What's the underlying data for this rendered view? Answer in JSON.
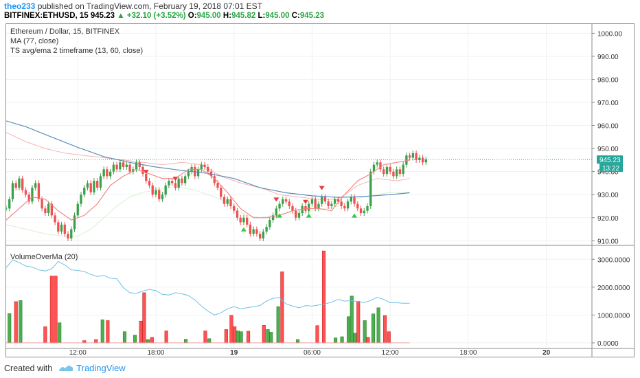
{
  "header": {
    "user": "theo233",
    "published_text": "published on TradingView.com, February 19, 2018 07:01 EST",
    "symbol": "BITFINEX:ETHUSD, 15",
    "last": "945.23",
    "change_arrow": "▲",
    "change": "+32.10 (+3.52%)",
    "o_label": "O:",
    "o_value": "945.00",
    "h_label": "H:",
    "h_value": "945.82",
    "l_label": "L:",
    "l_value": "945.00",
    "c_label": "C:",
    "c_value": "945.23"
  },
  "legend": {
    "line1": "Ethereum / Dollar, 15, BITFINEX",
    "line2": "MA (77, close)",
    "line3": "TS avg/ema 2 timeframe (13, 60, close)",
    "volume_title": "VolumeOverMa (20)"
  },
  "badges": {
    "price": "945.23",
    "countdown": "13:22"
  },
  "footer": {
    "created_with": "Created with",
    "brand": "TradingView"
  },
  "colors": {
    "up": "#3aa148",
    "down": "#f05050",
    "ma": "#5b8db8",
    "ema": "#f08080",
    "vol_ma": "#70c0e0",
    "price_line": "#26a69a"
  },
  "chart_data": [
    {
      "type": "candlestick",
      "title": "Ethereum / Dollar, 15, BITFINEX",
      "ylim": [
        908,
        1004
      ],
      "yticks": [
        "1000.00",
        "990.00",
        "980.00",
        "970.00",
        "960.00",
        "950.00",
        "940.00",
        "930.00",
        "920.00",
        "910.00"
      ],
      "ytick_values": [
        1000,
        990,
        980,
        970,
        960,
        950,
        940,
        930,
        920,
        910
      ],
      "xticks": [
        "12:00",
        "18:00",
        "19",
        "06:00",
        "12:00",
        "18:00",
        "20"
      ],
      "xtick_hours": [
        12,
        18,
        24,
        30,
        36,
        42,
        48
      ],
      "x_start_hour": 6.5,
      "x_end_hour": 51.5,
      "bar_interval_minutes": 15,
      "close": [
        924,
        928,
        935,
        933,
        937,
        932,
        930,
        927,
        933,
        935,
        928,
        924,
        922,
        926,
        921,
        918,
        914,
        917,
        913,
        911,
        915,
        921,
        926,
        930,
        933,
        935,
        931,
        936,
        933,
        938,
        941,
        938,
        940,
        943,
        941,
        944,
        942,
        943,
        940,
        941,
        944,
        942,
        939,
        936,
        934,
        930,
        932,
        928,
        930,
        934,
        936,
        935,
        933,
        937,
        935,
        938,
        940,
        942,
        938,
        941,
        943,
        942,
        940,
        938,
        935,
        933,
        929,
        926,
        928,
        925,
        923,
        920,
        918,
        920,
        917,
        913,
        915,
        913,
        911,
        914,
        916,
        919,
        921,
        924,
        926,
        928,
        927,
        925,
        923,
        920,
        922,
        925,
        923,
        926,
        928,
        924,
        926,
        929,
        927,
        925,
        926,
        928,
        927,
        925,
        924,
        927,
        929,
        926,
        924,
        922,
        923,
        925,
        940,
        943,
        944,
        941,
        939,
        942,
        940,
        938,
        941,
        939,
        943,
        947,
        946,
        948,
        945,
        946,
        944,
        945.23
      ],
      "ma_77_points": [
        [
          6.5,
          962
        ],
        [
          8,
          959.5
        ],
        [
          10,
          955
        ],
        [
          12,
          950.5
        ],
        [
          14,
          946.5
        ],
        [
          16,
          944
        ],
        [
          18,
          942
        ],
        [
          20,
          940.5
        ],
        [
          22,
          939.2
        ],
        [
          24,
          937
        ],
        [
          26,
          933
        ],
        [
          28,
          930.8
        ],
        [
          30,
          929.5
        ],
        [
          32,
          928.8
        ],
        [
          34,
          929.2
        ],
        [
          36,
          930
        ],
        [
          37.5,
          930.8
        ]
      ],
      "ema_points": [
        [
          6.5,
          919
        ],
        [
          7.5,
          924
        ],
        [
          8.5,
          929
        ],
        [
          9.5,
          928
        ],
        [
          10.5,
          923
        ],
        [
          11.5,
          919
        ],
        [
          12.5,
          921
        ],
        [
          13.5,
          926
        ],
        [
          14.5,
          934
        ],
        [
          15.5,
          938
        ],
        [
          16.5,
          941
        ],
        [
          17.5,
          939
        ],
        [
          18.5,
          937
        ],
        [
          19.5,
          937
        ],
        [
          20.5,
          941
        ],
        [
          21.5,
          941
        ],
        [
          22.5,
          937
        ],
        [
          23.5,
          931
        ],
        [
          24.5,
          924
        ],
        [
          25.5,
          920
        ],
        [
          26.5,
          920
        ],
        [
          27.5,
          921
        ],
        [
          28.5,
          923
        ],
        [
          29.5,
          924
        ],
        [
          30.5,
          924
        ],
        [
          31.5,
          923
        ],
        [
          32.5,
          930
        ],
        [
          33.5,
          936
        ],
        [
          34.5,
          939
        ],
        [
          35.5,
          943
        ],
        [
          36.5,
          944
        ],
        [
          37.5,
          945
        ]
      ],
      "ts_upper_points": [
        [
          6.5,
          957
        ],
        [
          8,
          953
        ],
        [
          9.5,
          950
        ],
        [
          11,
          948
        ],
        [
          12.5,
          947
        ],
        [
          14,
          946
        ],
        [
          15.5,
          945
        ],
        [
          17,
          944
        ],
        [
          18.5,
          943
        ],
        [
          20,
          944
        ],
        [
          21.5,
          943
        ],
        [
          23,
          938
        ],
        [
          24.5,
          935
        ],
        [
          26,
          933
        ],
        [
          27.5,
          930
        ],
        [
          29,
          929
        ],
        [
          30.5,
          928
        ],
        [
          32,
          928
        ],
        [
          33.5,
          934
        ],
        [
          35,
          937
        ],
        [
          36.5,
          936
        ],
        [
          37.5,
          937
        ]
      ],
      "ts_lower_points": [
        [
          6.5,
          917
        ],
        [
          8,
          915
        ],
        [
          9.5,
          913
        ],
        [
          11,
          912
        ],
        [
          12,
          912
        ],
        [
          13,
          915
        ],
        [
          14,
          920
        ],
        [
          15,
          925
        ],
        [
          16,
          929
        ],
        [
          17,
          931
        ],
        [
          18,
          932
        ],
        [
          19,
          933
        ],
        [
          20,
          933
        ],
        [
          21,
          932
        ],
        [
          22,
          930
        ],
        [
          23,
          928
        ],
        [
          24,
          924
        ],
        [
          25,
          921
        ],
        [
          26,
          920
        ],
        [
          27,
          921
        ],
        [
          28,
          922
        ],
        [
          29,
          922
        ],
        [
          30,
          923
        ],
        [
          31,
          924
        ],
        [
          32,
          925
        ],
        [
          33,
          928
        ],
        [
          34,
          929
        ],
        [
          35,
          930
        ],
        [
          36,
          931
        ],
        [
          37,
          931
        ],
        [
          37.5,
          931
        ]
      ],
      "buy_signal_hours": [
        24.75,
        27.5,
        29.75,
        33.25
      ],
      "sell_signal_hours": [
        17.25,
        19.5,
        27.25,
        29.5,
        30.75
      ],
      "current_price": 945.23
    },
    {
      "type": "bar",
      "title": "VolumeOverMa (20)",
      "ylim": [
        -200,
        3500
      ],
      "yticks": [
        "3000.0000",
        "2000.0000",
        "1000.0000",
        "0.0000"
      ],
      "ytick_values": [
        3000,
        2000,
        1000,
        0
      ],
      "bars": [
        [
          6.75,
          1050,
          "up"
        ],
        [
          7.25,
          1480,
          "down"
        ],
        [
          7.6,
          1520,
          "up"
        ],
        [
          9.5,
          580,
          "down"
        ],
        [
          10.0,
          2400,
          "down"
        ],
        [
          10.3,
          2400,
          "down"
        ],
        [
          10.6,
          720,
          "up"
        ],
        [
          12.5,
          80,
          "down"
        ],
        [
          13.4,
          120,
          "down"
        ],
        [
          13.9,
          830,
          "up"
        ],
        [
          14.3,
          800,
          "down"
        ],
        [
          15.6,
          400,
          "up"
        ],
        [
          16.4,
          280,
          "up"
        ],
        [
          16.85,
          780,
          "down"
        ],
        [
          17.1,
          1800,
          "down"
        ],
        [
          17.4,
          120,
          "up"
        ],
        [
          17.7,
          200,
          "down"
        ],
        [
          18.8,
          430,
          "down"
        ],
        [
          20.3,
          130,
          "up"
        ],
        [
          21.8,
          430,
          "down"
        ],
        [
          22.1,
          150,
          "up"
        ],
        [
          23.4,
          480,
          "down"
        ],
        [
          23.8,
          990,
          "down"
        ],
        [
          24.05,
          580,
          "down"
        ],
        [
          24.3,
          430,
          "up"
        ],
        [
          24.55,
          400,
          "up"
        ],
        [
          25.1,
          420,
          "down"
        ],
        [
          26.3,
          630,
          "down"
        ],
        [
          26.6,
          480,
          "up"
        ],
        [
          26.85,
          380,
          "up"
        ],
        [
          27.4,
          1300,
          "up"
        ],
        [
          27.7,
          2550,
          "down"
        ],
        [
          28.9,
          120,
          "up"
        ],
        [
          30.4,
          620,
          "down"
        ],
        [
          30.9,
          3300,
          "down"
        ],
        [
          31.8,
          180,
          "up"
        ],
        [
          32.3,
          220,
          "up"
        ],
        [
          32.8,
          940,
          "up"
        ],
        [
          33.05,
          1680,
          "up"
        ],
        [
          33.3,
          350,
          "up"
        ],
        [
          33.55,
          1490,
          "down"
        ],
        [
          34.05,
          800,
          "up"
        ],
        [
          34.3,
          200,
          "down"
        ],
        [
          34.7,
          1040,
          "up"
        ],
        [
          35.1,
          1260,
          "up"
        ],
        [
          35.6,
          980,
          "down"
        ],
        [
          35.9,
          400,
          "down"
        ]
      ],
      "volume_ma_points": [
        [
          6.5,
          2700
        ],
        [
          7,
          2980
        ],
        [
          7.5,
          2880
        ],
        [
          8,
          2760
        ],
        [
          8.5,
          2720
        ],
        [
          9,
          2620
        ],
        [
          9.5,
          2580
        ],
        [
          10,
          2660
        ],
        [
          10.5,
          2920
        ],
        [
          11,
          2800
        ],
        [
          11.5,
          2620
        ],
        [
          12,
          2600
        ],
        [
          12.5,
          2560
        ],
        [
          13,
          2460
        ],
        [
          13.5,
          2380
        ],
        [
          14,
          2420
        ],
        [
          14.5,
          2320
        ],
        [
          15,
          2300
        ],
        [
          15.5,
          1980
        ],
        [
          16,
          1800
        ],
        [
          16.5,
          1780
        ],
        [
          17,
          1860
        ],
        [
          17.5,
          1920
        ],
        [
          18,
          1880
        ],
        [
          18.5,
          1740
        ],
        [
          19,
          1720
        ],
        [
          19.5,
          1800
        ],
        [
          20,
          1760
        ],
        [
          20.5,
          1700
        ],
        [
          21,
          1540
        ],
        [
          21.5,
          1320
        ],
        [
          22,
          1140
        ],
        [
          22.5,
          1000
        ],
        [
          23,
          1080
        ],
        [
          23.5,
          1220
        ],
        [
          24,
          1300
        ],
        [
          24.5,
          1220
        ],
        [
          25,
          1260
        ],
        [
          25.5,
          1300
        ],
        [
          26,
          1340
        ],
        [
          26.5,
          1500
        ],
        [
          27,
          1600
        ],
        [
          27.5,
          1620
        ],
        [
          28,
          1400
        ],
        [
          28.5,
          1320
        ],
        [
          29,
          1260
        ],
        [
          29.5,
          1340
        ],
        [
          30,
          1320
        ],
        [
          30.5,
          1360
        ],
        [
          31,
          1400
        ],
        [
          31.5,
          1460
        ],
        [
          32,
          1560
        ],
        [
          32.5,
          1500
        ],
        [
          33,
          1520
        ],
        [
          33.5,
          1480
        ],
        [
          34,
          1450
        ],
        [
          34.5,
          1520
        ],
        [
          35,
          1640
        ],
        [
          35.5,
          1560
        ],
        [
          36,
          1440
        ],
        [
          36.5,
          1440
        ],
        [
          37,
          1420
        ],
        [
          37.5,
          1420
        ]
      ]
    }
  ]
}
